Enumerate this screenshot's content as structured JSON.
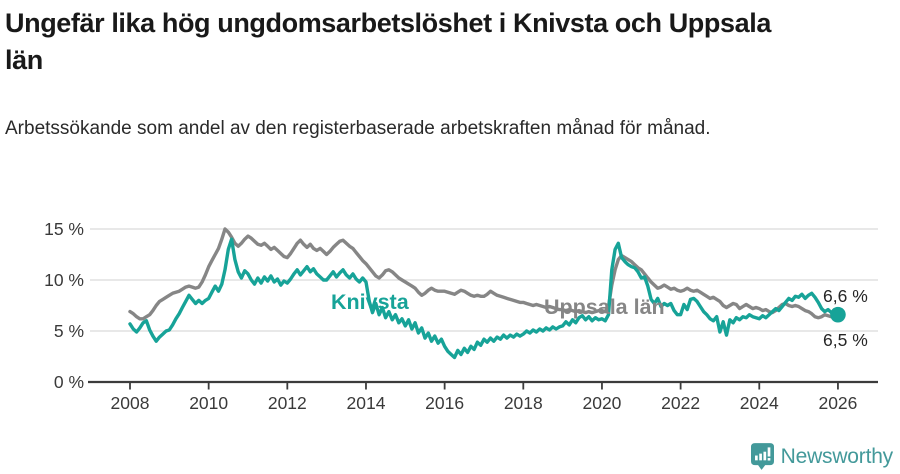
{
  "title": "Ungefär lika hög ungdomsarbetslöshet i Knivsta och Uppsala län",
  "subtitle": "Arbetssökande som andel av den registerbaserade arbetskraften månad för månad.",
  "footer": {
    "brand": "Newsworthy"
  },
  "colors": {
    "knivsta": "#17a398",
    "uppsala": "#868686",
    "grid": "#d9d9d9",
    "axis": "#3c3c3c",
    "tick_text": "#3a3a3a",
    "end_label_text": "#262626",
    "brand": "#43999a"
  },
  "chart_data": {
    "type": "line",
    "title": "Ungefär lika hög ungdomsarbetslöshet i Knivsta och Uppsala län",
    "subtitle": "Arbetssökande som andel av den registerbaserade arbetskraften månad för månad.",
    "freq": "monthly",
    "start": "2008-01",
    "end": "2026-01",
    "xlabel": "",
    "ylabel": "",
    "ylim": [
      0,
      15.5
    ],
    "grid": true,
    "legend_position": "inline-labels",
    "xticks": [
      2008,
      2010,
      2012,
      2014,
      2016,
      2018,
      2020,
      2022,
      2024,
      2026
    ],
    "yticks": [
      {
        "value": 0,
        "label": "0 %"
      },
      {
        "value": 5,
        "label": "5 %"
      },
      {
        "value": 10,
        "label": "10 %"
      },
      {
        "value": 15,
        "label": "15 %"
      }
    ],
    "series": [
      {
        "name": "Uppsala län",
        "color": "#868686",
        "end_label": "6,5 %",
        "values": [
          6.9,
          6.7,
          6.4,
          6.2,
          6.2,
          6.4,
          6.6,
          7.0,
          7.5,
          7.9,
          8.1,
          8.3,
          8.5,
          8.7,
          8.8,
          8.9,
          9.1,
          9.3,
          9.4,
          9.3,
          9.2,
          9.3,
          9.8,
          10.5,
          11.3,
          11.9,
          12.5,
          13.1,
          14.0,
          15.0,
          14.7,
          14.2,
          13.6,
          13.3,
          13.6,
          14.0,
          14.3,
          14.1,
          13.8,
          13.5,
          13.4,
          13.6,
          13.3,
          13.0,
          13.2,
          12.9,
          12.6,
          12.3,
          12.2,
          12.6,
          13.1,
          13.6,
          13.9,
          13.5,
          13.2,
          13.5,
          13.1,
          12.9,
          13.1,
          12.8,
          12.5,
          12.8,
          13.2,
          13.5,
          13.8,
          13.9,
          13.6,
          13.3,
          13.1,
          12.7,
          12.3,
          11.9,
          11.6,
          11.2,
          10.8,
          10.4,
          10.2,
          10.5,
          10.9,
          11.0,
          10.8,
          10.5,
          10.2,
          10.0,
          9.8,
          9.6,
          9.4,
          9.2,
          8.8,
          8.5,
          8.7,
          9.0,
          9.2,
          9.0,
          8.9,
          8.9,
          8.9,
          8.8,
          8.7,
          8.6,
          8.8,
          9.0,
          8.9,
          8.7,
          8.5,
          8.4,
          8.5,
          8.4,
          8.4,
          8.6,
          8.9,
          8.7,
          8.5,
          8.4,
          8.3,
          8.2,
          8.1,
          8.0,
          7.9,
          7.8,
          7.8,
          7.7,
          7.6,
          7.5,
          7.6,
          7.5,
          7.4,
          7.3,
          7.4,
          7.3,
          7.2,
          7.1,
          7.1,
          7.0,
          7.1,
          7.0,
          6.9,
          7.0,
          6.9,
          6.8,
          6.9,
          6.8,
          6.9,
          7.0,
          7.0,
          6.9,
          7.4,
          9.5,
          11.0,
          12.0,
          12.4,
          12.2,
          12.0,
          11.8,
          11.5,
          11.2,
          11.0,
          10.6,
          10.2,
          9.8,
          9.5,
          9.2,
          9.3,
          9.5,
          9.3,
          9.1,
          9.2,
          9.0,
          8.9,
          9.0,
          9.2,
          9.0,
          8.9,
          9.0,
          8.8,
          8.6,
          8.4,
          8.2,
          8.3,
          8.1,
          7.9,
          7.5,
          7.3,
          7.5,
          7.7,
          7.6,
          7.2,
          7.4,
          7.6,
          7.4,
          7.2,
          7.3,
          7.2,
          7.0,
          7.1,
          6.9,
          6.8,
          7.0,
          7.3,
          7.6,
          7.7,
          7.5,
          7.4,
          7.5,
          7.4,
          7.2,
          7.0,
          6.9,
          6.7,
          6.4,
          6.3,
          6.4,
          6.6,
          6.5,
          6.4,
          6.4,
          6.5
        ]
      },
      {
        "name": "Knivsta",
        "color": "#17a398",
        "end_label": "6,6 %",
        "values": [
          5.7,
          5.2,
          4.9,
          5.3,
          5.8,
          6.0,
          5.1,
          4.5,
          4.0,
          4.4,
          4.7,
          5.0,
          5.1,
          5.6,
          6.2,
          6.7,
          7.3,
          7.9,
          8.5,
          8.1,
          7.7,
          8.0,
          7.7,
          8.0,
          8.2,
          8.8,
          9.4,
          8.9,
          9.6,
          11.0,
          13.0,
          14.0,
          12.0,
          10.8,
          10.2,
          10.9,
          10.6,
          10.0,
          9.6,
          10.2,
          9.7,
          10.3,
          9.9,
          10.4,
          9.8,
          10.1,
          9.5,
          9.9,
          9.7,
          10.1,
          10.6,
          11.0,
          10.5,
          10.9,
          11.3,
          10.8,
          11.1,
          10.6,
          10.3,
          10.0,
          10.0,
          10.4,
          10.8,
          10.3,
          10.7,
          11.0,
          10.5,
          10.2,
          10.6,
          10.1,
          9.8,
          10.2,
          9.8,
          7.9,
          6.8,
          7.7,
          6.6,
          7.3,
          6.3,
          6.9,
          6.1,
          6.6,
          5.8,
          6.2,
          5.5,
          6.1,
          5.2,
          5.8,
          4.8,
          5.3,
          4.3,
          4.8,
          4.0,
          4.5,
          3.8,
          4.2,
          3.5,
          3.0,
          2.7,
          2.4,
          3.1,
          2.7,
          3.3,
          2.9,
          3.5,
          3.2,
          3.9,
          3.6,
          4.2,
          3.9,
          4.3,
          4.0,
          4.4,
          4.2,
          4.6,
          4.3,
          4.6,
          4.4,
          4.7,
          4.5,
          4.7,
          5.0,
          4.8,
          5.1,
          4.9,
          5.2,
          5.0,
          5.3,
          5.1,
          5.4,
          5.2,
          5.4,
          5.5,
          5.9,
          5.6,
          6.1,
          5.8,
          6.3,
          6.5,
          6.1,
          6.4,
          6.0,
          6.3,
          6.1,
          6.2,
          6.0,
          6.6,
          11.0,
          13.0,
          13.6,
          12.2,
          11.8,
          11.5,
          11.3,
          11.2,
          10.8,
          10.2,
          10.3,
          9.4,
          8.1,
          7.7,
          8.2,
          7.4,
          7.7,
          7.5,
          7.7,
          7.0,
          6.6,
          6.6,
          7.6,
          7.1,
          8.1,
          8.2,
          7.9,
          7.4,
          6.9,
          6.6,
          6.2,
          6.0,
          6.4,
          4.9,
          5.9,
          4.6,
          6.1,
          5.8,
          6.3,
          6.1,
          6.4,
          6.3,
          6.6,
          6.4,
          6.3,
          6.2,
          6.5,
          6.3,
          6.6,
          6.9,
          7.2,
          7.0,
          7.4,
          7.8,
          8.2,
          8.0,
          8.4,
          8.3,
          8.6,
          8.2,
          8.5,
          8.7,
          8.3,
          7.8,
          7.2,
          6.9,
          7.1,
          6.8,
          6.7,
          6.6
        ]
      }
    ]
  }
}
